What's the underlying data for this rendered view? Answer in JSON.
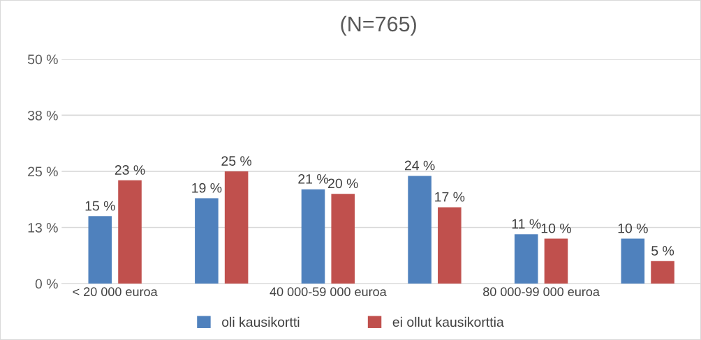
{
  "chart_data": {
    "type": "bar",
    "title": "(N=765)",
    "categories": [
      "< 20 000 euroa",
      null,
      "40 000-59 000 euroa",
      null,
      "80 000-99 000 euroa",
      null
    ],
    "series": [
      {
        "name": "oli kausikortti",
        "color": "#4f81bd",
        "values": [
          15,
          19,
          21,
          24,
          11,
          10
        ],
        "value_labels": [
          "15 %",
          "19 %",
          "21 %",
          "24 %",
          "11 %",
          "10 %"
        ]
      },
      {
        "name": "ei ollut kausikorttia",
        "color": "#c0504d",
        "values": [
          23,
          25,
          20,
          17,
          10,
          5
        ],
        "value_labels": [
          "23 %",
          "25 %",
          "20 %",
          "17 %",
          "10 %",
          "5 %"
        ]
      }
    ],
    "ylim": [
      0,
      50
    ],
    "yticks": [
      {
        "value": 0,
        "label": "0 %"
      },
      {
        "value": 12.5,
        "label": "13 %"
      },
      {
        "value": 25,
        "label": "25 %"
      },
      {
        "value": 37.5,
        "label": "38 %"
      },
      {
        "value": 50,
        "label": "50 %"
      }
    ],
    "grid": "y",
    "legend": "bottom"
  }
}
